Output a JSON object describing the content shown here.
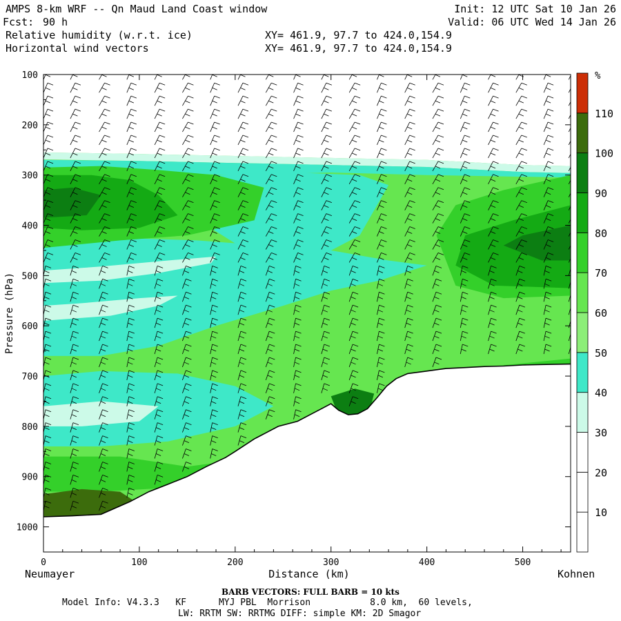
{
  "header": {
    "title": "AMPS 8-km WRF -- Qn Maud Land Coast window",
    "forecast_label": "Fcst:",
    "forecast_value": "90 h",
    "field1": "Relative humidity (w.r.t. ice)",
    "field2": "Horizontal wind vectors",
    "init": "Init: 12 UTC Sat 10 Jan 26",
    "valid": "Valid: 06 UTC Wed 14 Jan 26",
    "xy1": "XY= 461.9, 97.7 to 424.0,154.9",
    "xy2": "XY= 461.9, 97.7 to 424.0,154.9"
  },
  "footer": {
    "barb_note": "BARB VECTORS:  FULL BARB = 10 kts",
    "model_info": "Model Info: V4.3.3   KF      MYJ PBL  Morrison           8.0 km,  60 levels,",
    "model_info2": "LW: RRTM SW: RRTMG   DIFF: simple KM: 2D Smagor",
    "left_station": "Neumayer",
    "right_station": "Kohnen"
  },
  "chart_data": {
    "type": "heatmap",
    "title": "Relative humidity (w.r.t. ice) cross-section with horizontal wind vectors",
    "xlabel": "Distance (km)",
    "ylabel": "Pressure (hPa)",
    "xlim": [
      0,
      550
    ],
    "ylim": [
      1050,
      100
    ],
    "x_ticks": [
      0,
      100,
      200,
      300,
      400,
      500
    ],
    "y_ticks": [
      100,
      200,
      300,
      400,
      500,
      600,
      700,
      800,
      900,
      1000
    ],
    "colorbar": {
      "unit": "%",
      "levels": [
        10,
        20,
        30,
        40,
        50,
        60,
        70,
        80,
        90,
        100,
        110
      ],
      "colors": [
        "#ffffff",
        "#ffffff",
        "#ffffff",
        "#ccfae8",
        "#3ee8c8",
        "#8cee78",
        "#66e650",
        "#34d02a",
        "#14aa14",
        "#0c7e12",
        "#3c6c0c",
        "#cc2e06"
      ]
    },
    "terrain": {
      "x_km": [
        0,
        30,
        60,
        90,
        110,
        130,
        150,
        170,
        190,
        200,
        220,
        245,
        265,
        280,
        290,
        300,
        308,
        318,
        328,
        338,
        348,
        358,
        368,
        380,
        400,
        420,
        440,
        460,
        480,
        500,
        520,
        550
      ],
      "surface_hPa": [
        980,
        978,
        975,
        950,
        930,
        915,
        900,
        880,
        862,
        850,
        825,
        800,
        790,
        775,
        765,
        755,
        768,
        777,
        775,
        765,
        743,
        720,
        705,
        695,
        690,
        685,
        683,
        681,
        680,
        678,
        677,
        676
      ]
    },
    "moisture_top_hPa": [
      {
        "x": 0,
        "p": 255
      },
      {
        "x": 100,
        "p": 258
      },
      {
        "x": 200,
        "p": 262
      },
      {
        "x": 300,
        "p": 266
      },
      {
        "x": 400,
        "p": 270
      },
      {
        "x": 500,
        "p": 280
      },
      {
        "x": 550,
        "p": 282
      }
    ],
    "rh_regions": [
      {
        "level": "30-40",
        "desc": "thin band along moisture top"
      },
      {
        "level": "40-50",
        "desc": "mid-troposphere layer 450-650 hPa, west half"
      },
      {
        "level": "60-70",
        "desc": "broad layer across section"
      },
      {
        "level": "80-90",
        "desc": "upper layer 300-420 hPa near Neumayer"
      },
      {
        "level": "90-100",
        "desc": "core 300-420 hPa at 0-100 km and 430-550 km near 450 hPa"
      },
      {
        "level": "100-110",
        "desc": "near surface at Neumayer"
      }
    ],
    "wind_barb_columns_km": [
      0,
      28,
      58,
      87,
      116,
      145,
      174,
      203,
      232,
      261,
      290,
      319,
      348,
      377,
      406,
      435,
      464,
      493,
      522,
      548
    ]
  }
}
